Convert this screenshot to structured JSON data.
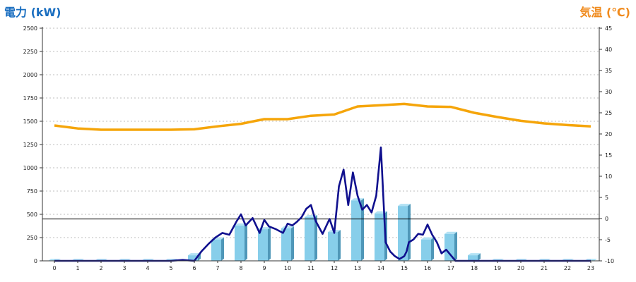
{
  "chart_data": {
    "type": "bar",
    "title_left": "電力 (kW)",
    "title_right": "気温 (℃)",
    "x_ticks": [
      "0",
      "1",
      "2",
      "3",
      "4",
      "5",
      "6",
      "7",
      "8",
      "9",
      "10",
      "11",
      "12",
      "13",
      "14",
      "15",
      "16",
      "17",
      "18",
      "19",
      "20",
      "21",
      "22",
      "23"
    ],
    "y_left_ticks": [
      "0",
      "250",
      "500",
      "750",
      "1000",
      "1250",
      "1500",
      "1750",
      "2000",
      "2250",
      "2500"
    ],
    "y_right_ticks": [
      "-10",
      "-5",
      "0",
      "5",
      "10",
      "15",
      "20",
      "25",
      "30",
      "35",
      "40",
      "45"
    ],
    "ylim_left": [
      0,
      2500
    ],
    "ylim_right": [
      -10,
      45
    ],
    "grid": true,
    "reference_line_left": 450,
    "series": [
      {
        "kind": "bar",
        "axis": "left",
        "values": [
          0,
          0,
          0,
          0,
          0,
          0,
          60,
          230,
          380,
          340,
          350,
          470,
          310,
          650,
          510,
          590,
          230,
          290,
          60,
          0,
          0,
          0,
          0,
          0
        ]
      },
      {
        "kind": "line",
        "axis": "left",
        "x": [
          0,
          1,
          2,
          3,
          4,
          5,
          5.5,
          6,
          6.3,
          6.6,
          6.9,
          7.2,
          7.5,
          7.8,
          8.0,
          8.2,
          8.5,
          8.8,
          9.0,
          9.2,
          9.5,
          9.8,
          10.0,
          10.2,
          10.4,
          10.6,
          10.8,
          11.0,
          11.2,
          11.5,
          11.8,
          12.0,
          12.2,
          12.4,
          12.6,
          12.8,
          13.0,
          13.2,
          13.4,
          13.6,
          13.8,
          14.0,
          14.2,
          14.4,
          14.6,
          14.8,
          15.0,
          15.1,
          15.2,
          15.4,
          15.6,
          15.8,
          16.0,
          16.2,
          16.4,
          16.6,
          16.8,
          17.0,
          17.2,
          17.4,
          17.6,
          17.8,
          18.0,
          18.2,
          18.5,
          19,
          20,
          21,
          22,
          23
        ],
        "values": [
          0,
          0,
          0,
          0,
          0,
          0,
          10,
          0,
          100,
          180,
          250,
          300,
          280,
          420,
          500,
          380,
          460,
          300,
          440,
          370,
          340,
          300,
          400,
          380,
          420,
          470,
          560,
          600,
          430,
          290,
          450,
          300,
          800,
          980,
          600,
          950,
          700,
          550,
          600,
          520,
          700,
          1220,
          200,
          100,
          50,
          20,
          50,
          100,
          200,
          230,
          290,
          280,
          390,
          280,
          200,
          80,
          120,
          60,
          0,
          0,
          0,
          0,
          0,
          0,
          0,
          0,
          0,
          0,
          0,
          0
        ]
      },
      {
        "kind": "line",
        "axis": "right",
        "x": [
          0,
          1,
          2,
          3,
          4,
          5,
          6,
          7,
          8,
          9,
          10,
          11,
          12,
          13,
          14,
          15,
          16,
          17,
          18,
          19,
          20,
          21,
          22,
          23
        ],
        "values": [
          22,
          21.3,
          21,
          21,
          21,
          21,
          21.1,
          21.8,
          22.4,
          23.5,
          23.5,
          24.3,
          24.6,
          26.5,
          26.8,
          27.1,
          26.5,
          26.4,
          25,
          24,
          23.1,
          22.5,
          22.1,
          21.8
        ]
      }
    ],
    "colors": {
      "bar_face": "#87ceea",
      "bar_side": "#4f97b8",
      "bar_top": "#b3e2f4",
      "power_line": "#10108e",
      "temperature_line": "#f5a50a",
      "title_left": "#1a6ec0",
      "title_right": "#f08a1c"
    }
  }
}
